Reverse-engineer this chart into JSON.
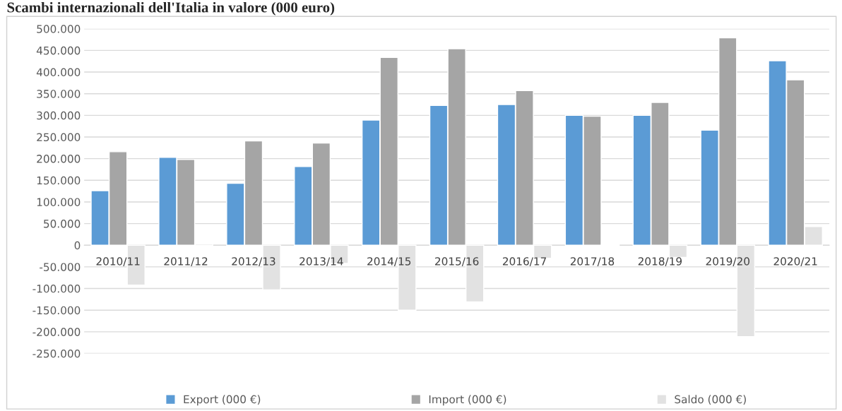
{
  "chart_data": {
    "type": "bar",
    "title": "Scambi internazionali dell'Italia in valore (000 euro)",
    "categories": [
      "2010/11",
      "2011/12",
      "2012/13",
      "2013/14",
      "2014/15",
      "2015/16",
      "2016/17",
      "2017/18",
      "2018/19",
      "2019/20",
      "2020/21"
    ],
    "series": [
      {
        "name": "Export (000 €)",
        "color": "#5b9bd5",
        "values": [
          126000,
          203000,
          143000,
          182000,
          289000,
          323000,
          325000,
          300000,
          300000,
          266000,
          426000
        ]
      },
      {
        "name": "Import (000 €)",
        "color": "#a5a5a5",
        "values": [
          216000,
          198000,
          241000,
          236000,
          434000,
          454000,
          357000,
          298000,
          330000,
          479000,
          382000
        ]
      },
      {
        "name": "Saldo (000 €)",
        "color": "#e2e2e2",
        "values": [
          -92000,
          3000,
          -103000,
          -42000,
          -150000,
          -131000,
          -30000,
          2000,
          -28000,
          -211000,
          43000
        ]
      }
    ],
    "ylim": [
      -250000,
      500000
    ],
    "yticks": [
      {
        "value": -250000,
        "label": "-250.000"
      },
      {
        "value": -200000,
        "label": "-200.000"
      },
      {
        "value": -150000,
        "label": "-150.000"
      },
      {
        "value": -100000,
        "label": "-100.000"
      },
      {
        "value": -50000,
        "label": "-50.000"
      },
      {
        "value": 0,
        "label": "0"
      },
      {
        "value": 50000,
        "label": "50.000"
      },
      {
        "value": 100000,
        "label": "100.000"
      },
      {
        "value": 150000,
        "label": "150.000"
      },
      {
        "value": 200000,
        "label": "200.000"
      },
      {
        "value": 250000,
        "label": "250.000"
      },
      {
        "value": 300000,
        "label": "300.000"
      },
      {
        "value": 350000,
        "label": "350.000"
      },
      {
        "value": 400000,
        "label": "400.000"
      },
      {
        "value": 450000,
        "label": "450.000"
      },
      {
        "value": 500000,
        "label": "500.000"
      }
    ],
    "grid": "y",
    "legend": "bottom"
  }
}
